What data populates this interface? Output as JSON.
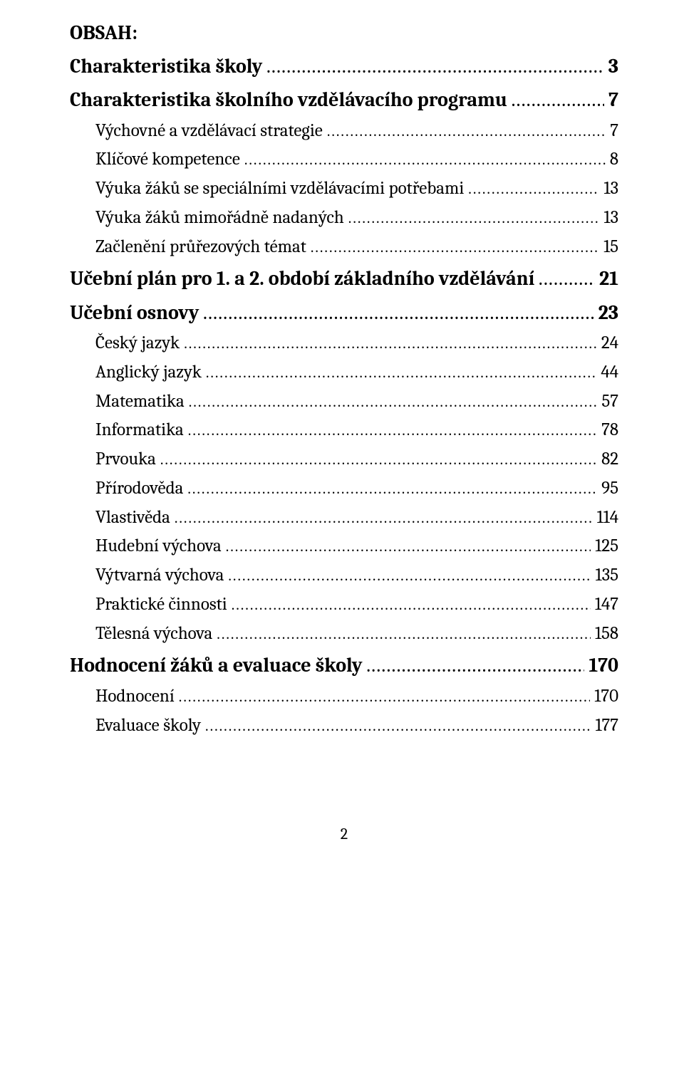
{
  "title": "OBSAH:",
  "footer_page": "2",
  "entries": [
    {
      "label": "Charakteristika školy",
      "page": "3",
      "level": 0
    },
    {
      "label": "Charakteristika školního vzdělávacího programu",
      "page": "7",
      "level": 0
    },
    {
      "label": "Výchovné a vzdělávací strategie",
      "page": "7",
      "level": 1
    },
    {
      "label": "Klíčové kompetence",
      "page": "8",
      "level": 1
    },
    {
      "label": "Výuka žáků se speciálními vzdělávacími potřebami",
      "page": "13",
      "level": 1
    },
    {
      "label": "Výuka žáků mimořádně nadaných",
      "page": "13",
      "level": 1
    },
    {
      "label": "Začlenění průřezových témat",
      "page": "15",
      "level": 1
    },
    {
      "label": "Učební plán pro 1. a 2. období základního vzdělávání",
      "page": "21",
      "level": 0
    },
    {
      "label": "Učební osnovy",
      "page": "23",
      "level": 0
    },
    {
      "label": "Český jazyk",
      "page": "24",
      "level": 1
    },
    {
      "label": "Anglický jazyk",
      "page": "44",
      "level": 1
    },
    {
      "label": "Matematika",
      "page": "57",
      "level": 1
    },
    {
      "label": "Informatika",
      "page": "78",
      "level": 1
    },
    {
      "label": "Prvouka",
      "page": "82",
      "level": 1
    },
    {
      "label": "Přírodověda",
      "page": "95",
      "level": 1
    },
    {
      "label": "Vlastivěda",
      "page": "114",
      "level": 1
    },
    {
      "label": "Hudební výchova",
      "page": "125",
      "level": 1
    },
    {
      "label": "Výtvarná výchova",
      "page": "135",
      "level": 1
    },
    {
      "label": "Praktické činnosti",
      "page": "147",
      "level": 1
    },
    {
      "label": "Tělesná výchova",
      "page": "158",
      "level": 1
    },
    {
      "label": "Hodnocení žáků a evaluace školy",
      "page": "170",
      "level": 0
    },
    {
      "label": "Hodnocení",
      "page": "170",
      "level": 1
    },
    {
      "label": "Evaluace školy",
      "page": "177",
      "level": 1
    }
  ]
}
